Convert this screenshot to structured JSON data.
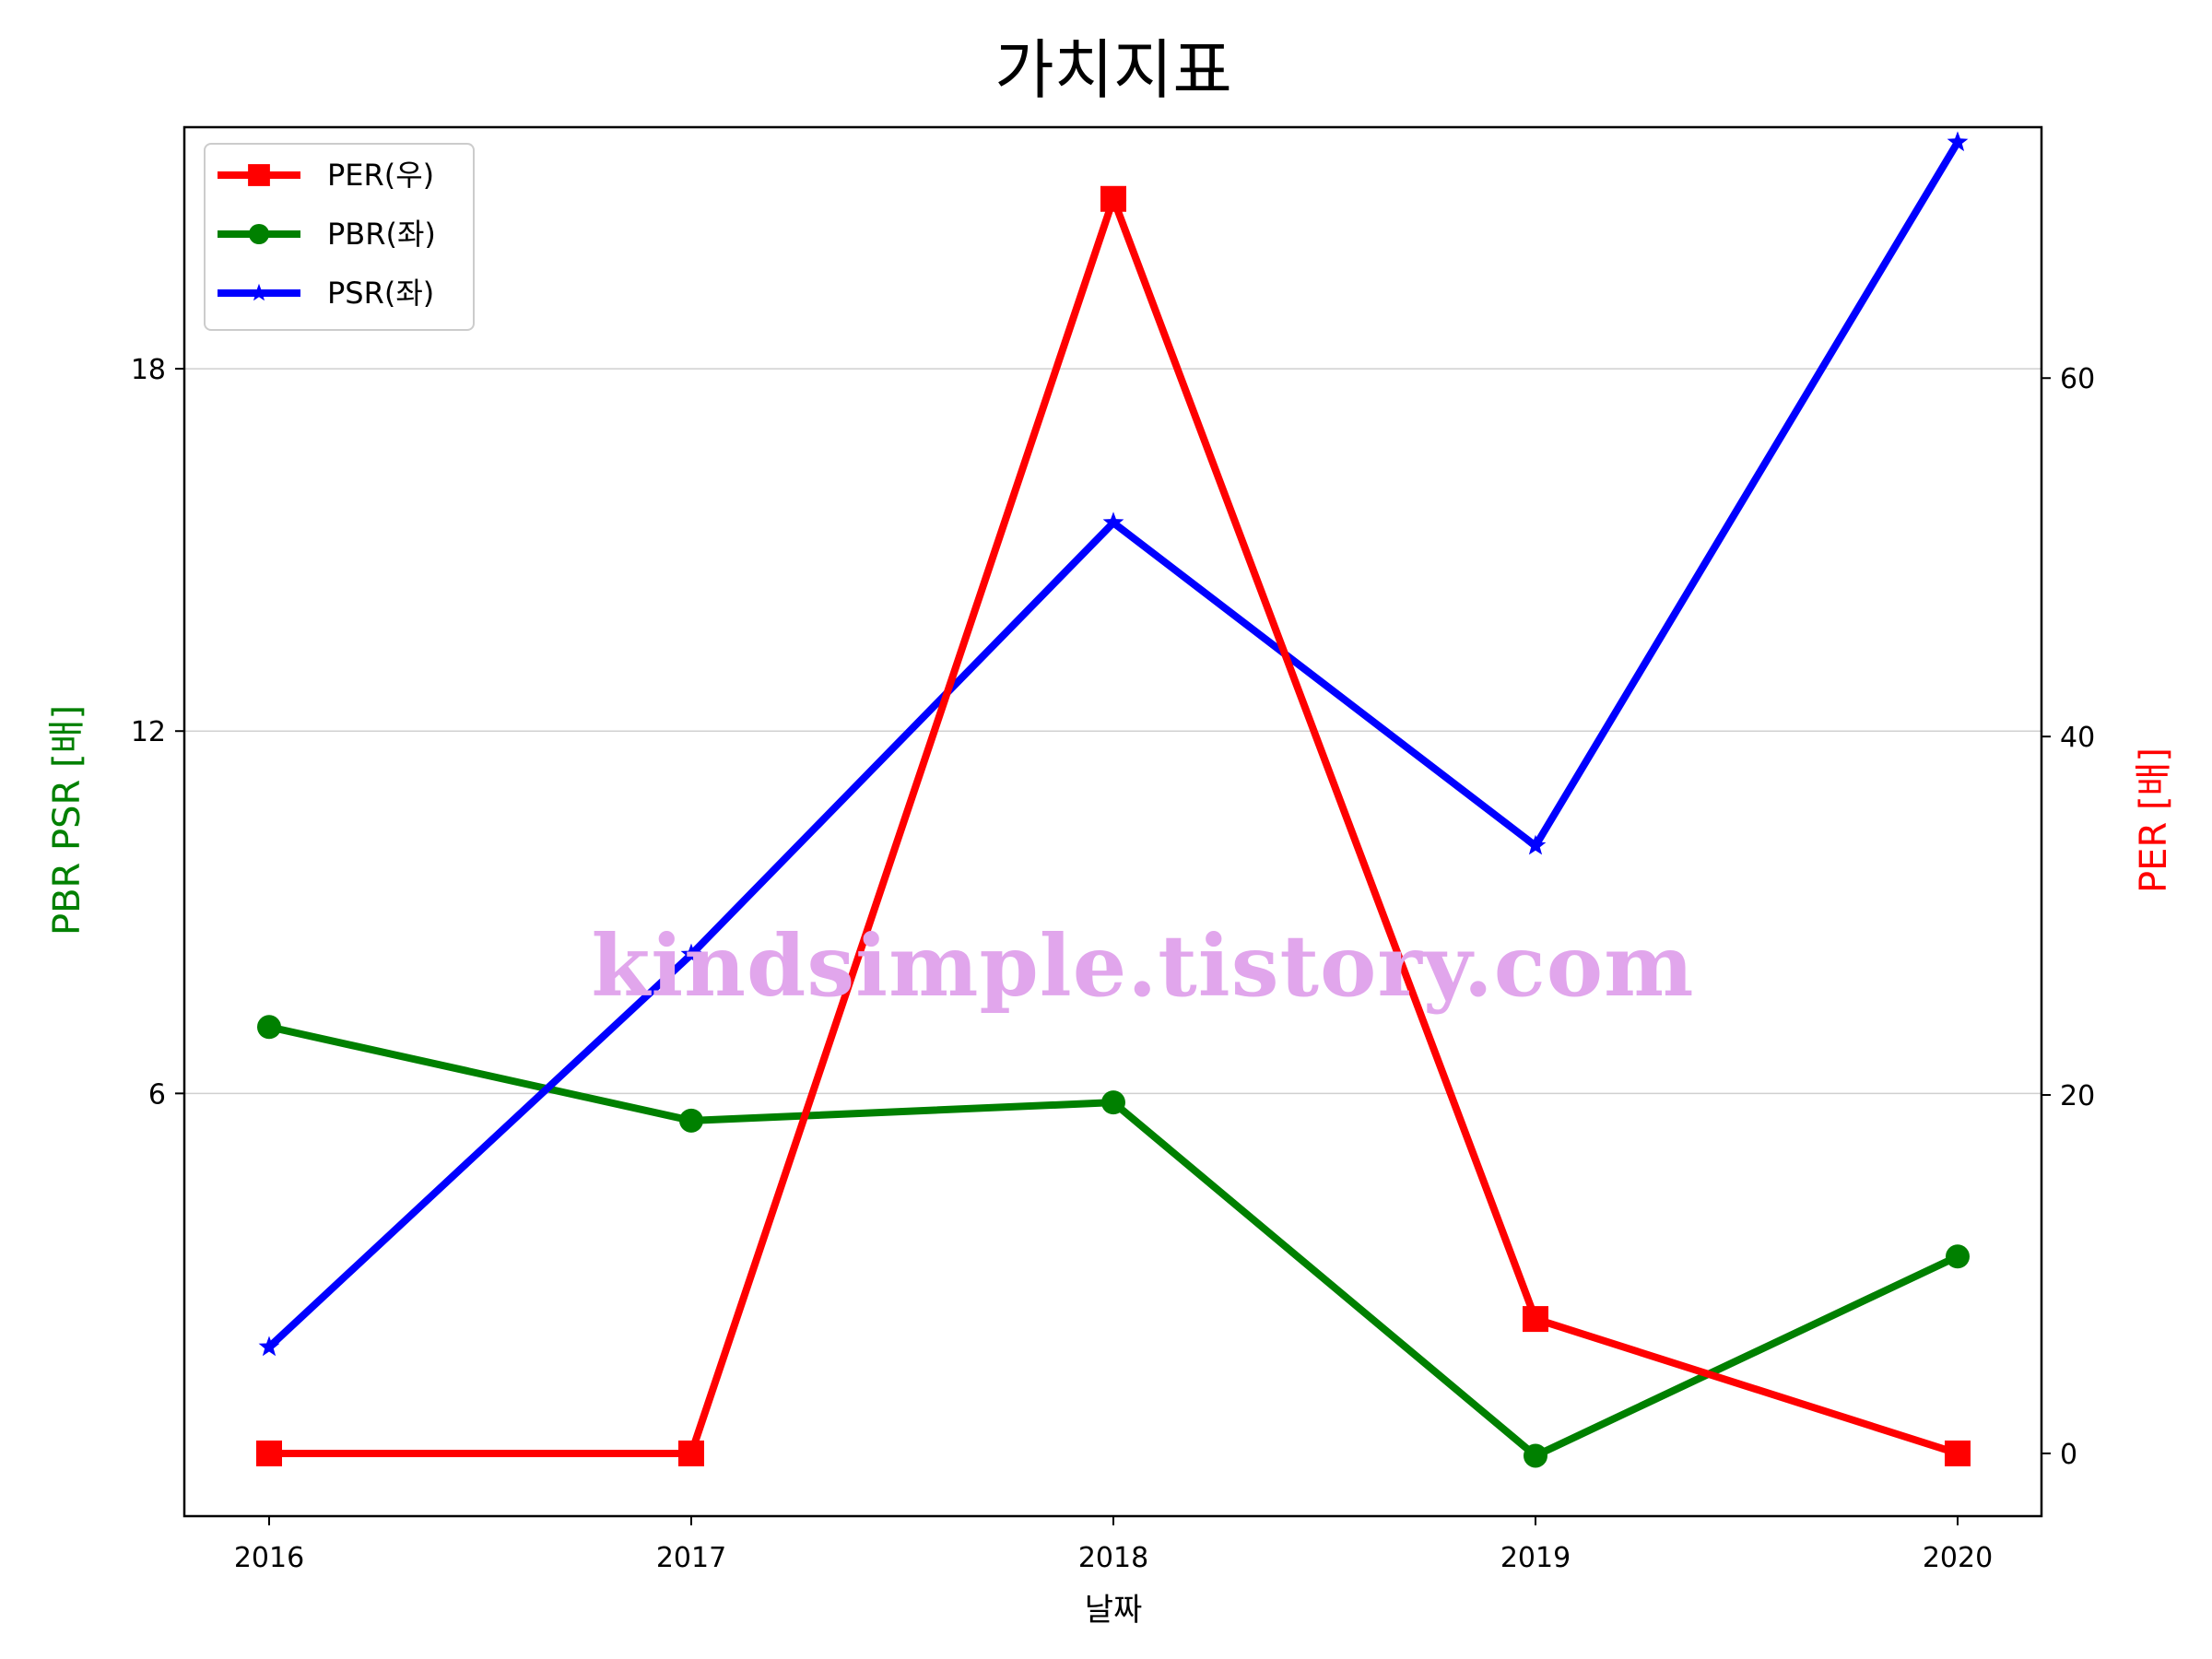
{
  "chart_data": {
    "type": "line",
    "title": "가치지표",
    "xlabel": "날짜",
    "ylabel_left": "PBR PSR [배]",
    "ylabel_right": "PER [배]",
    "categories": [
      "2016",
      "2017",
      "2018",
      "2019",
      "2020"
    ],
    "left_axis": {
      "ylim": [
        -1.0,
        22.0
      ],
      "ticks": [
        6,
        12,
        18
      ],
      "ylabel_color": "#008000"
    },
    "right_axis": {
      "ylim": [
        -3.5,
        74.0
      ],
      "ticks": [
        0,
        20,
        40,
        60
      ],
      "ylabel_color": "#ff0000"
    },
    "grid": {
      "y": true,
      "axis": "left"
    },
    "legend_position": "upper-left",
    "series": [
      {
        "name": "PER(우)",
        "axis": "right",
        "color": "#ff0000",
        "marker": "square",
        "values": [
          0.0,
          0.0,
          70.0,
          7.5,
          0.0
        ]
      },
      {
        "name": "PBR(좌)",
        "axis": "left",
        "color": "#008000",
        "marker": "circle",
        "values": [
          7.1,
          5.55,
          5.85,
          0.0,
          3.3
        ]
      },
      {
        "name": "PSR(좌)",
        "axis": "left",
        "color": "#0000ff",
        "marker": "star",
        "values": [
          1.8,
          8.3,
          15.45,
          10.1,
          21.75
        ]
      }
    ]
  },
  "watermark": "kindsimple.tistory.com"
}
